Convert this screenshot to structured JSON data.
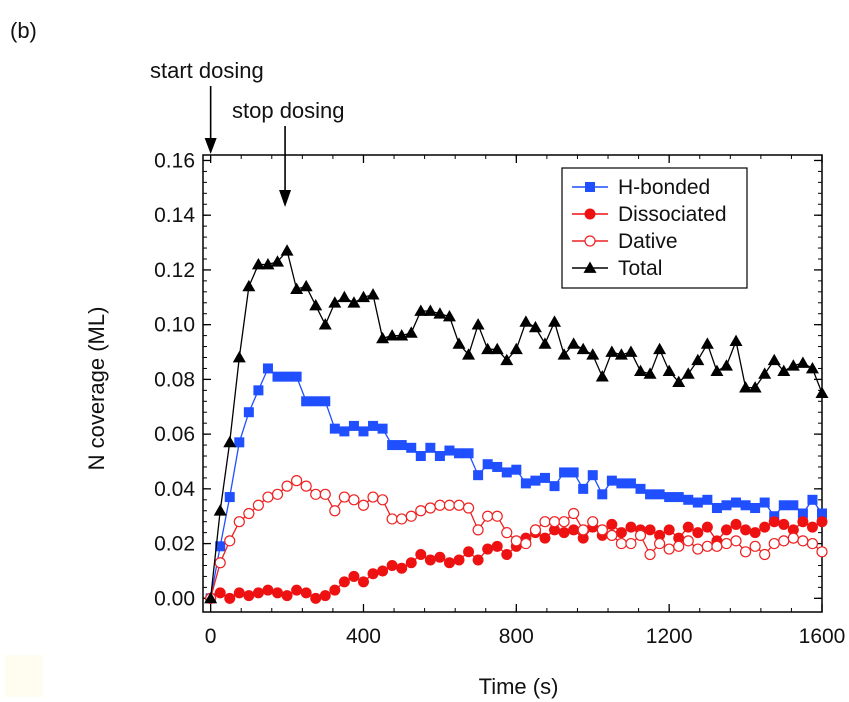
{
  "panel_label": "(b)",
  "colors": {
    "h_bonded": "#1f4fff",
    "dissociated": "#ee1111",
    "dative": "#ee2222",
    "total": "#000000"
  },
  "chart_data": {
    "type": "line",
    "title": "",
    "xlabel": "Time (s)",
    "ylabel": "N coverage (ML)",
    "xlim": [
      -20,
      1600
    ],
    "ylim": [
      -0.005,
      0.162
    ],
    "x_ticks": [
      0,
      400,
      800,
      1200,
      1600
    ],
    "y_ticks": [
      0.0,
      0.02,
      0.04,
      0.06,
      0.08,
      0.1,
      0.12,
      0.14,
      0.16
    ],
    "x_tick_labels": [
      "0",
      "400",
      "800",
      "1200",
      "1600"
    ],
    "y_tick_labels": [
      "0.00",
      "0.02",
      "0.04",
      "0.06",
      "0.08",
      "0.10",
      "0.12",
      "0.14",
      "0.16"
    ],
    "legend_position": "top-right",
    "annotations": [
      {
        "text": "start dosing",
        "x": 0
      },
      {
        "text": "stop dosing",
        "x": 200
      }
    ],
    "series": [
      {
        "name": "H-bonded",
        "marker": "filled-square",
        "color": "#1f4fff",
        "x": [
          0,
          25,
          50,
          75,
          100,
          125,
          150,
          175,
          200,
          225,
          250,
          275,
          300,
          325,
          350,
          375,
          400,
          425,
          450,
          475,
          500,
          525,
          550,
          575,
          600,
          625,
          650,
          675,
          700,
          725,
          750,
          775,
          800,
          825,
          850,
          875,
          900,
          925,
          950,
          975,
          1000,
          1025,
          1050,
          1075,
          1100,
          1125,
          1150,
          1175,
          1200,
          1225,
          1250,
          1275,
          1300,
          1325,
          1350,
          1375,
          1400,
          1425,
          1450,
          1475,
          1500,
          1525,
          1550,
          1575,
          1600
        ],
        "y": [
          0.0,
          0.019,
          0.037,
          0.057,
          0.068,
          0.076,
          0.084,
          0.081,
          0.081,
          0.081,
          0.072,
          0.072,
          0.072,
          0.062,
          0.061,
          0.063,
          0.061,
          0.063,
          0.062,
          0.056,
          0.056,
          0.055,
          0.052,
          0.055,
          0.052,
          0.054,
          0.053,
          0.053,
          0.045,
          0.049,
          0.048,
          0.046,
          0.047,
          0.042,
          0.043,
          0.044,
          0.041,
          0.046,
          0.046,
          0.04,
          0.045,
          0.038,
          0.043,
          0.042,
          0.042,
          0.04,
          0.038,
          0.038,
          0.037,
          0.037,
          0.036,
          0.035,
          0.036,
          0.033,
          0.034,
          0.035,
          0.034,
          0.033,
          0.035,
          0.03,
          0.034,
          0.034,
          0.031,
          0.036,
          0.031
        ]
      },
      {
        "name": "Dissociated",
        "marker": "filled-circle",
        "color": "#ee1111",
        "x": [
          0,
          25,
          50,
          75,
          100,
          125,
          150,
          175,
          200,
          225,
          250,
          275,
          300,
          325,
          350,
          375,
          400,
          425,
          450,
          475,
          500,
          525,
          550,
          575,
          600,
          625,
          650,
          675,
          700,
          725,
          750,
          775,
          800,
          825,
          850,
          875,
          900,
          925,
          950,
          975,
          1000,
          1025,
          1050,
          1075,
          1100,
          1125,
          1150,
          1175,
          1200,
          1225,
          1250,
          1275,
          1300,
          1325,
          1350,
          1375,
          1400,
          1425,
          1450,
          1475,
          1500,
          1525,
          1550,
          1575,
          1600
        ],
        "y": [
          0.0,
          0.002,
          0.0,
          0.002,
          0.001,
          0.002,
          0.003,
          0.002,
          0.001,
          0.003,
          0.002,
          0.0,
          0.001,
          0.003,
          0.006,
          0.008,
          0.006,
          0.009,
          0.01,
          0.012,
          0.011,
          0.013,
          0.016,
          0.014,
          0.015,
          0.013,
          0.014,
          0.017,
          0.014,
          0.018,
          0.019,
          0.016,
          0.019,
          0.022,
          0.024,
          0.022,
          0.025,
          0.024,
          0.025,
          0.022,
          0.026,
          0.023,
          0.027,
          0.024,
          0.026,
          0.025,
          0.025,
          0.023,
          0.025,
          0.022,
          0.026,
          0.024,
          0.026,
          0.021,
          0.025,
          0.027,
          0.025,
          0.024,
          0.026,
          0.028,
          0.027,
          0.025,
          0.028,
          0.026,
          0.028
        ]
      },
      {
        "name": "Dative",
        "marker": "open-circle",
        "color": "#ee2222",
        "x": [
          0,
          25,
          50,
          75,
          100,
          125,
          150,
          175,
          200,
          225,
          250,
          275,
          300,
          325,
          350,
          375,
          400,
          425,
          450,
          475,
          500,
          525,
          550,
          575,
          600,
          625,
          650,
          675,
          700,
          725,
          750,
          775,
          800,
          825,
          850,
          875,
          900,
          925,
          950,
          975,
          1000,
          1025,
          1050,
          1075,
          1100,
          1125,
          1150,
          1175,
          1200,
          1225,
          1250,
          1275,
          1300,
          1325,
          1350,
          1375,
          1400,
          1425,
          1450,
          1475,
          1500,
          1525,
          1550,
          1575,
          1600
        ],
        "y": [
          0.0,
          0.013,
          0.021,
          0.028,
          0.031,
          0.034,
          0.037,
          0.038,
          0.041,
          0.043,
          0.041,
          0.038,
          0.038,
          0.032,
          0.037,
          0.036,
          0.034,
          0.037,
          0.036,
          0.029,
          0.029,
          0.03,
          0.032,
          0.033,
          0.034,
          0.034,
          0.034,
          0.033,
          0.025,
          0.03,
          0.03,
          0.024,
          0.021,
          0.02,
          0.025,
          0.028,
          0.028,
          0.028,
          0.031,
          0.025,
          0.028,
          0.025,
          0.023,
          0.02,
          0.02,
          0.023,
          0.016,
          0.02,
          0.018,
          0.019,
          0.021,
          0.018,
          0.019,
          0.019,
          0.02,
          0.021,
          0.017,
          0.019,
          0.016,
          0.02,
          0.021,
          0.022,
          0.021,
          0.02,
          0.017
        ]
      },
      {
        "name": "Total",
        "marker": "filled-triangle",
        "color": "#000000",
        "x": [
          0,
          25,
          50,
          75,
          100,
          125,
          150,
          175,
          200,
          225,
          250,
          275,
          300,
          325,
          350,
          375,
          400,
          425,
          450,
          475,
          500,
          525,
          550,
          575,
          600,
          625,
          650,
          675,
          700,
          725,
          750,
          775,
          800,
          825,
          850,
          875,
          900,
          925,
          950,
          975,
          1000,
          1025,
          1050,
          1075,
          1100,
          1125,
          1150,
          1175,
          1200,
          1225,
          1250,
          1275,
          1300,
          1325,
          1350,
          1375,
          1400,
          1425,
          1450,
          1475,
          1500,
          1525,
          1550,
          1575,
          1600
        ],
        "y": [
          0.0,
          0.032,
          0.057,
          0.088,
          0.114,
          0.122,
          0.122,
          0.123,
          0.127,
          0.113,
          0.114,
          0.107,
          0.1,
          0.108,
          0.11,
          0.108,
          0.11,
          0.111,
          0.095,
          0.096,
          0.096,
          0.097,
          0.105,
          0.105,
          0.104,
          0.103,
          0.093,
          0.089,
          0.1,
          0.091,
          0.091,
          0.087,
          0.091,
          0.101,
          0.099,
          0.093,
          0.101,
          0.089,
          0.093,
          0.091,
          0.089,
          0.081,
          0.09,
          0.089,
          0.09,
          0.083,
          0.082,
          0.091,
          0.083,
          0.079,
          0.082,
          0.087,
          0.093,
          0.083,
          0.085,
          0.094,
          0.077,
          0.077,
          0.082,
          0.087,
          0.083,
          0.085,
          0.086,
          0.084,
          0.075
        ]
      }
    ]
  }
}
